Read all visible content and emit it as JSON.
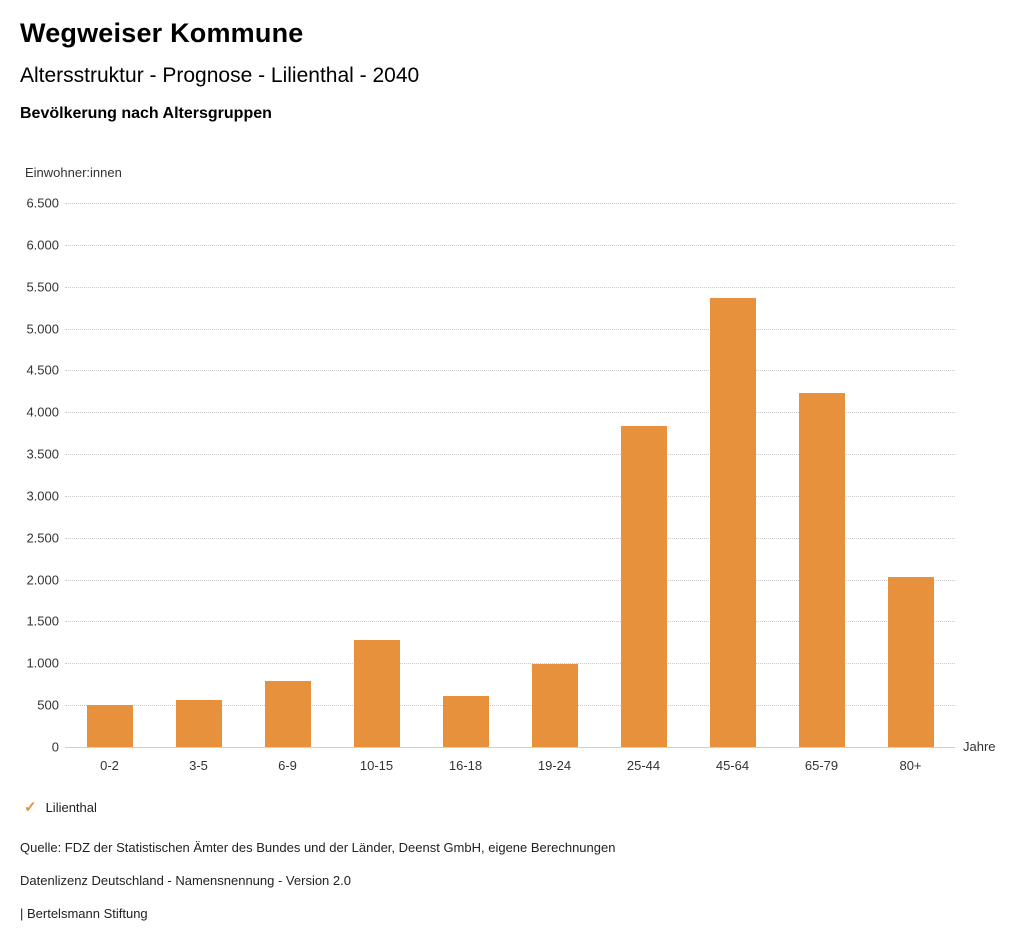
{
  "header": {
    "title": "Wegweiser Kommune",
    "subtitle": "Altersstruktur - Prognose - Lilienthal - 2040",
    "chart_title": "Bevölkerung nach Altersgruppen"
  },
  "chart_data": {
    "type": "bar",
    "title": "Bevölkerung nach Altersgruppen",
    "categories": [
      "0-2",
      "3-5",
      "6-9",
      "10-15",
      "16-18",
      "19-24",
      "25-44",
      "45-64",
      "65-79",
      "80+"
    ],
    "series": [
      {
        "name": "Lilienthal",
        "values": [
          500,
          560,
          790,
          1280,
          610,
          990,
          3830,
          5360,
          4230,
          2030
        ]
      }
    ],
    "xlabel": "Jahre",
    "ylabel": "Einwohner:innen",
    "ylim": [
      0,
      6500
    ],
    "ytick_step": 500,
    "bar_color": "#E8913C",
    "grid": true,
    "gridline_style": "dotted",
    "legend_position": "bottom"
  },
  "legend": {
    "items": [
      {
        "label": "Lilienthal",
        "icon": "✓",
        "color": "#E8913C"
      }
    ]
  },
  "footer": {
    "source": "Quelle: FDZ der Statistischen Ämter des Bundes und der Länder, Deenst GmbH, eigene Berechnungen",
    "license": "Datenlizenz Deutschland - Namensnennung - Version 2.0",
    "attribution": "| Bertelsmann Stiftung"
  }
}
